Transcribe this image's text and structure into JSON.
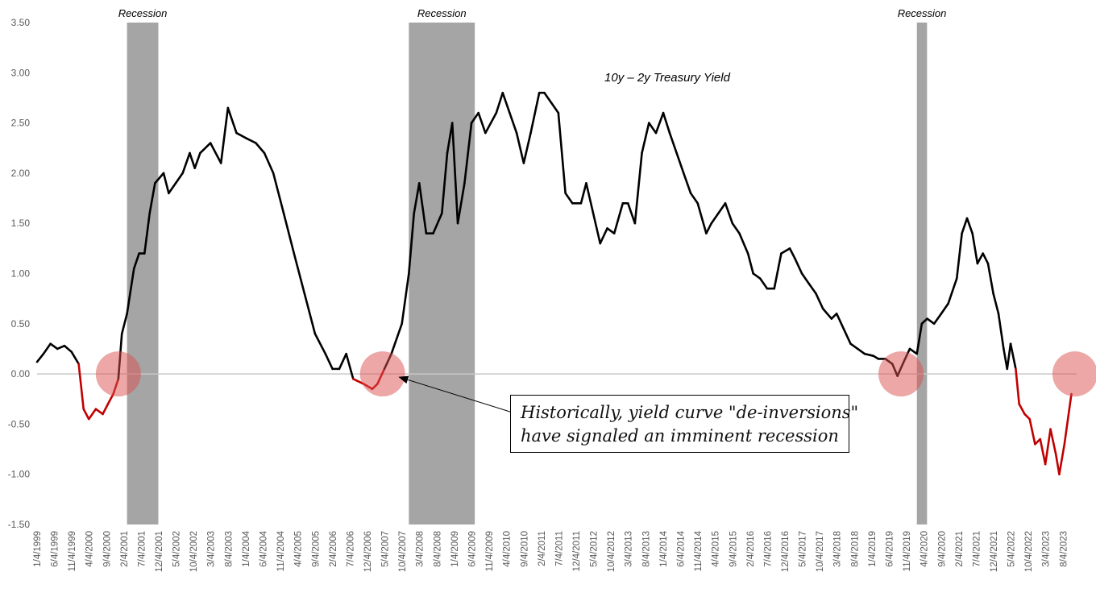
{
  "chart_data": {
    "type": "line",
    "series_label": "10y – 2y Treasury Yield",
    "ylim": [
      -1.5,
      3.5
    ],
    "yticks": [
      "3.50",
      "3.00",
      "2.50",
      "2.00",
      "1.50",
      "1.00",
      "0.50",
      "0.00",
      "-0.50",
      "-1.00",
      "-1.50"
    ],
    "xlim": [
      "1999-01-04",
      "2023-11-30"
    ],
    "xticks": [
      "1/4/1999",
      "6/4/1999",
      "11/4/1999",
      "4/4/2000",
      "9/4/2000",
      "2/4/2001",
      "7/4/2001",
      "12/4/2001",
      "5/4/2002",
      "10/4/2002",
      "3/4/2003",
      "8/4/2003",
      "1/4/2004",
      "6/4/2004",
      "11/4/2004",
      "4/4/2005",
      "9/4/2005",
      "2/4/2006",
      "7/4/2006",
      "12/4/2006",
      "5/4/2007",
      "10/4/2007",
      "3/4/2008",
      "8/4/2008",
      "1/4/2009",
      "6/4/2009",
      "11/4/2009",
      "4/4/2010",
      "9/4/2010",
      "2/4/2011",
      "7/4/2011",
      "12/4/2011",
      "5/4/2012",
      "10/4/2012",
      "3/4/2013",
      "8/4/2013",
      "1/4/2014",
      "6/4/2014",
      "11/4/2014",
      "4/4/2015",
      "9/4/2015",
      "2/4/2016",
      "7/4/2016",
      "12/4/2016",
      "5/4/2017",
      "10/4/2017",
      "3/4/2018",
      "8/4/2018",
      "1/4/2019",
      "6/4/2019",
      "11/4/2019",
      "4/4/2020",
      "9/4/2020",
      "2/4/2021",
      "7/4/2021",
      "12/4/2021",
      "5/4/2022",
      "10/4/2022",
      "3/4/2023",
      "8/4/2023"
    ],
    "recessions": [
      {
        "label": "Recession",
        "start": "2001-03-01",
        "end": "2001-11-30"
      },
      {
        "label": "Recession",
        "start": "2007-12-01",
        "end": "2009-06-30"
      },
      {
        "label": "Recession",
        "start": "2020-02-01",
        "end": "2020-04-30"
      }
    ],
    "series": [
      {
        "color_positive": "#000000",
        "color_negative": "#c00000",
        "points": [
          [
            "1999-01-04",
            0.12
          ],
          [
            "1999-03-01",
            0.2
          ],
          [
            "1999-05-01",
            0.3
          ],
          [
            "1999-07-01",
            0.25
          ],
          [
            "1999-09-01",
            0.28
          ],
          [
            "1999-11-01",
            0.22
          ],
          [
            "2000-01-03",
            0.1
          ],
          [
            "2000-02-15",
            -0.35
          ],
          [
            "2000-04-01",
            -0.45
          ],
          [
            "2000-06-01",
            -0.35
          ],
          [
            "2000-08-01",
            -0.4
          ],
          [
            "2000-09-15",
            -0.3
          ],
          [
            "2000-11-01",
            -0.2
          ],
          [
            "2000-12-15",
            -0.05
          ],
          [
            "2001-01-15",
            0.4
          ],
          [
            "2001-03-01",
            0.6
          ],
          [
            "2001-05-01",
            1.05
          ],
          [
            "2001-06-15",
            1.2
          ],
          [
            "2001-08-01",
            1.2
          ],
          [
            "2001-09-15",
            1.6
          ],
          [
            "2001-11-01",
            1.9
          ],
          [
            "2002-01-15",
            2.0
          ],
          [
            "2002-03-01",
            1.8
          ],
          [
            "2002-05-01",
            1.9
          ],
          [
            "2002-07-01",
            2.0
          ],
          [
            "2002-09-01",
            2.2
          ],
          [
            "2002-10-15",
            2.05
          ],
          [
            "2002-12-01",
            2.2
          ],
          [
            "2003-03-01",
            2.3
          ],
          [
            "2003-06-01",
            2.1
          ],
          [
            "2003-08-01",
            2.65
          ],
          [
            "2003-10-15",
            2.4
          ],
          [
            "2004-01-04",
            2.35
          ],
          [
            "2004-04-01",
            2.3
          ],
          [
            "2004-06-15",
            2.2
          ],
          [
            "2004-09-01",
            2.0
          ],
          [
            "2004-12-01",
            1.6
          ],
          [
            "2005-03-01",
            1.2
          ],
          [
            "2005-06-01",
            0.8
          ],
          [
            "2005-09-01",
            0.4
          ],
          [
            "2005-12-01",
            0.2
          ],
          [
            "2006-02-01",
            0.05
          ],
          [
            "2006-04-01",
            0.05
          ],
          [
            "2006-06-01",
            0.2
          ],
          [
            "2006-08-01",
            -0.05
          ],
          [
            "2006-11-01",
            -0.1
          ],
          [
            "2007-01-15",
            -0.15
          ],
          [
            "2007-03-01",
            -0.1
          ],
          [
            "2007-05-01",
            0.05
          ],
          [
            "2007-07-01",
            0.2
          ],
          [
            "2007-10-01",
            0.5
          ],
          [
            "2007-12-01",
            1.0
          ],
          [
            "2008-01-15",
            1.6
          ],
          [
            "2008-03-01",
            1.9
          ],
          [
            "2008-05-01",
            1.4
          ],
          [
            "2008-07-01",
            1.4
          ],
          [
            "2008-09-15",
            1.6
          ],
          [
            "2008-11-01",
            2.2
          ],
          [
            "2008-12-15",
            2.5
          ],
          [
            "2009-02-01",
            1.5
          ],
          [
            "2009-04-01",
            1.9
          ],
          [
            "2009-06-01",
            2.5
          ],
          [
            "2009-08-01",
            2.6
          ],
          [
            "2009-10-01",
            2.4
          ],
          [
            "2010-01-04",
            2.6
          ],
          [
            "2010-03-01",
            2.8
          ],
          [
            "2010-05-01",
            2.6
          ],
          [
            "2010-07-01",
            2.4
          ],
          [
            "2010-09-01",
            2.1
          ],
          [
            "2010-11-01",
            2.4
          ],
          [
            "2011-01-15",
            2.8
          ],
          [
            "2011-03-01",
            2.8
          ],
          [
            "2011-05-01",
            2.7
          ],
          [
            "2011-07-01",
            2.6
          ],
          [
            "2011-09-01",
            1.8
          ],
          [
            "2011-11-01",
            1.7
          ],
          [
            "2012-01-15",
            1.7
          ],
          [
            "2012-03-01",
            1.9
          ],
          [
            "2012-05-01",
            1.6
          ],
          [
            "2012-07-01",
            1.3
          ],
          [
            "2012-09-01",
            1.45
          ],
          [
            "2012-11-01",
            1.4
          ],
          [
            "2013-01-15",
            1.7
          ],
          [
            "2013-03-01",
            1.7
          ],
          [
            "2013-05-01",
            1.5
          ],
          [
            "2013-07-01",
            2.2
          ],
          [
            "2013-09-01",
            2.5
          ],
          [
            "2013-11-01",
            2.4
          ],
          [
            "2014-01-04",
            2.6
          ],
          [
            "2014-03-01",
            2.4
          ],
          [
            "2014-05-01",
            2.2
          ],
          [
            "2014-07-01",
            2.0
          ],
          [
            "2014-09-01",
            1.8
          ],
          [
            "2014-11-01",
            1.7
          ],
          [
            "2015-01-15",
            1.4
          ],
          [
            "2015-03-01",
            1.5
          ],
          [
            "2015-05-01",
            1.6
          ],
          [
            "2015-07-01",
            1.7
          ],
          [
            "2015-09-01",
            1.5
          ],
          [
            "2015-11-01",
            1.4
          ],
          [
            "2016-01-15",
            1.2
          ],
          [
            "2016-03-01",
            1.0
          ],
          [
            "2016-05-01",
            0.95
          ],
          [
            "2016-07-01",
            0.85
          ],
          [
            "2016-09-01",
            0.85
          ],
          [
            "2016-11-01",
            1.2
          ],
          [
            "2017-01-15",
            1.25
          ],
          [
            "2017-03-01",
            1.15
          ],
          [
            "2017-05-01",
            1.0
          ],
          [
            "2017-07-01",
            0.9
          ],
          [
            "2017-09-01",
            0.8
          ],
          [
            "2017-11-01",
            0.65
          ],
          [
            "2018-01-15",
            0.55
          ],
          [
            "2018-03-01",
            0.6
          ],
          [
            "2018-05-01",
            0.45
          ],
          [
            "2018-07-01",
            0.3
          ],
          [
            "2018-09-01",
            0.25
          ],
          [
            "2018-11-01",
            0.2
          ],
          [
            "2019-01-15",
            0.18
          ],
          [
            "2019-03-01",
            0.15
          ],
          [
            "2019-05-01",
            0.15
          ],
          [
            "2019-07-01",
            0.1
          ],
          [
            "2019-08-15",
            -0.02
          ],
          [
            "2019-10-01",
            0.1
          ],
          [
            "2019-12-01",
            0.25
          ],
          [
            "2020-02-01",
            0.2
          ],
          [
            "2020-03-15",
            0.5
          ],
          [
            "2020-05-01",
            0.55
          ],
          [
            "2020-07-01",
            0.5
          ],
          [
            "2020-09-01",
            0.6
          ],
          [
            "2020-11-01",
            0.7
          ],
          [
            "2021-01-15",
            0.95
          ],
          [
            "2021-03-01",
            1.4
          ],
          [
            "2021-04-15",
            1.55
          ],
          [
            "2021-06-01",
            1.4
          ],
          [
            "2021-07-15",
            1.1
          ],
          [
            "2021-09-01",
            1.2
          ],
          [
            "2021-10-15",
            1.1
          ],
          [
            "2021-12-01",
            0.8
          ],
          [
            "2022-01-15",
            0.6
          ],
          [
            "2022-03-01",
            0.25
          ],
          [
            "2022-04-01",
            0.05
          ],
          [
            "2022-05-01",
            0.3
          ],
          [
            "2022-06-15",
            0.05
          ],
          [
            "2022-07-15",
            -0.3
          ],
          [
            "2022-09-01",
            -0.4
          ],
          [
            "2022-10-15",
            -0.45
          ],
          [
            "2022-12-01",
            -0.7
          ],
          [
            "2023-01-15",
            -0.65
          ],
          [
            "2023-03-01",
            -0.9
          ],
          [
            "2023-04-15",
            -0.55
          ],
          [
            "2023-06-01",
            -0.8
          ],
          [
            "2023-07-01",
            -1.0
          ],
          [
            "2023-08-15",
            -0.7
          ],
          [
            "2023-10-15",
            -0.2
          ]
        ]
      }
    ],
    "annotation": {
      "lines": [
        "Historically, yield curve \"de-inversions\"",
        "have signaled an imminent recession"
      ],
      "arrow_target": "2007-06-01"
    },
    "highlights": [
      "2000-12-15",
      "2007-04-15",
      "2019-09-15",
      "2023-11-15"
    ]
  }
}
